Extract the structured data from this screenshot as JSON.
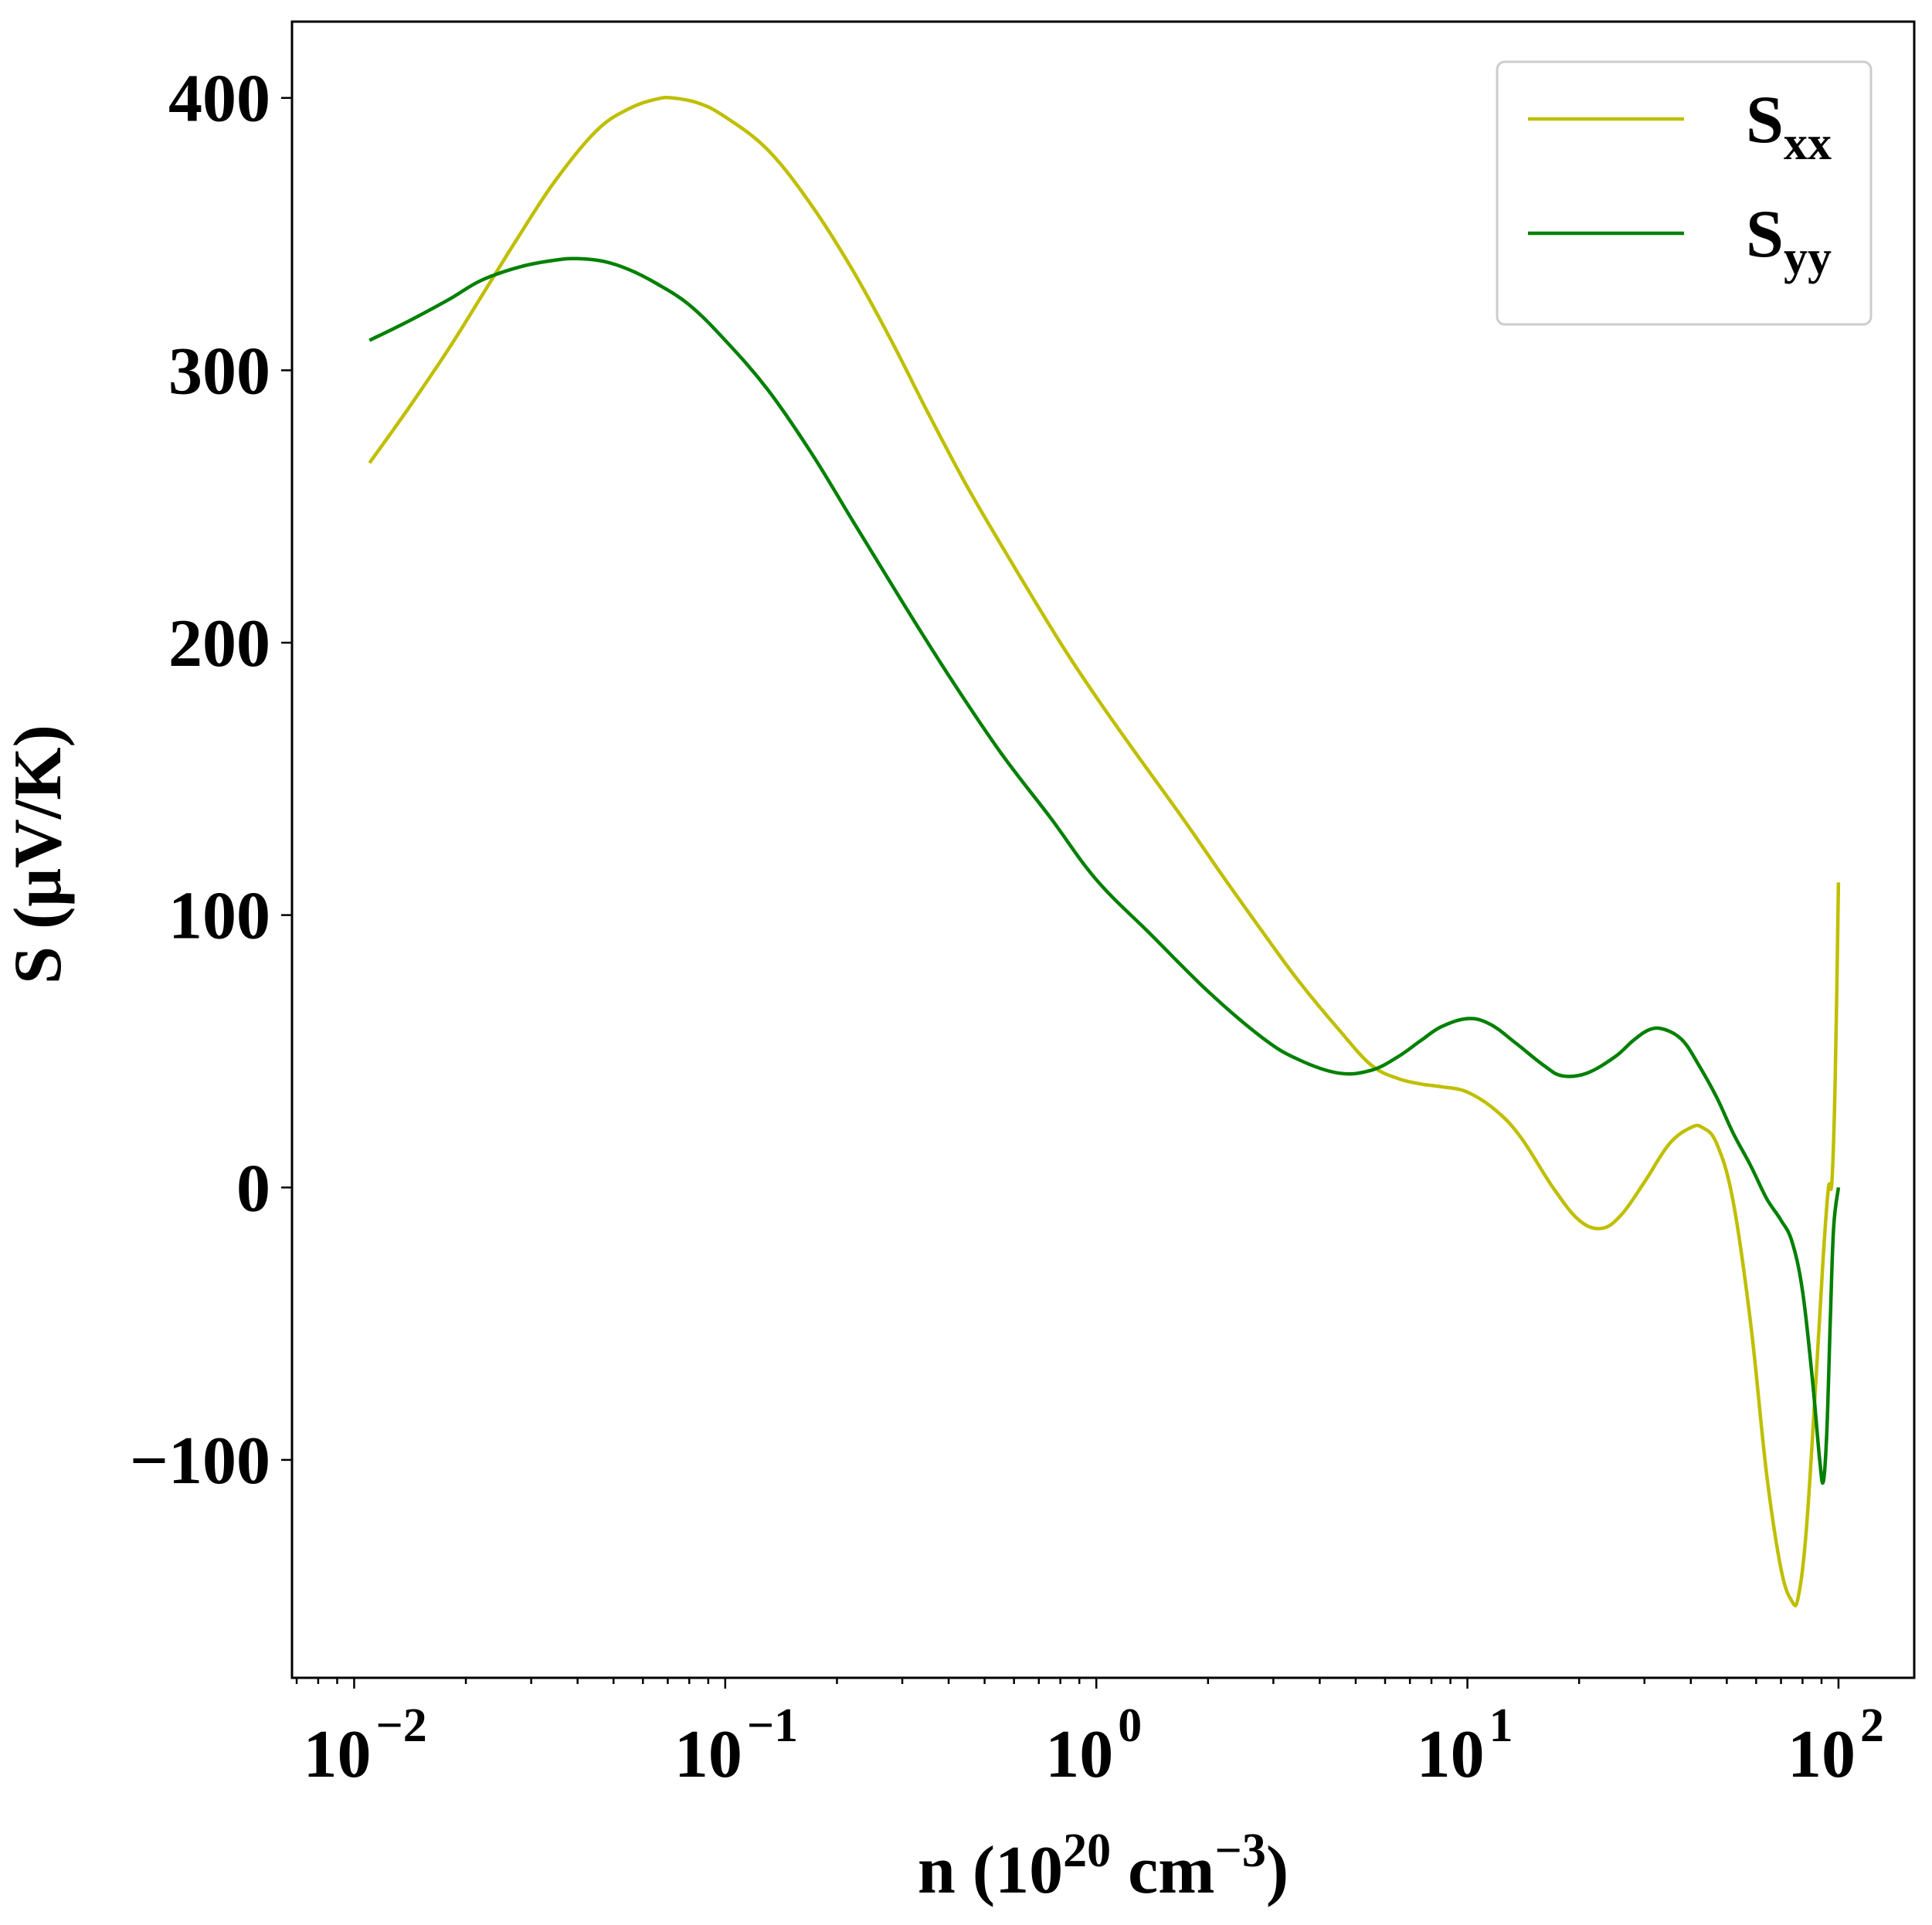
{
  "chart_data": {
    "type": "line",
    "title": "",
    "xlabel": "n (10^20 cm^-3)",
    "xlabel_parts": {
      "prefix": "n (10",
      "sup1": "20",
      "mid": " cm",
      "sup2": "−3",
      "suffix": ")"
    },
    "ylabel": "S (μV/K)",
    "xscale": "log",
    "xlim": [
      0.0068,
      160
    ],
    "ylim": [
      -180,
      428
    ],
    "grid": false,
    "legend_position": "top-right",
    "x_ticks": [
      {
        "value": 0.01,
        "base": "10",
        "exp": "−2"
      },
      {
        "value": 0.1,
        "base": "10",
        "exp": "−1"
      },
      {
        "value": 1,
        "base": "10",
        "exp": "0"
      },
      {
        "value": 10,
        "base": "10",
        "exp": "1"
      },
      {
        "value": 100,
        "base": "10",
        "exp": "2"
      }
    ],
    "y_ticks": [
      {
        "value": -100,
        "label": "−100"
      },
      {
        "value": 0,
        "label": "0"
      },
      {
        "value": 100,
        "label": "100"
      },
      {
        "value": 200,
        "label": "200"
      },
      {
        "value": 300,
        "label": "300"
      },
      {
        "value": 400,
        "label": "400"
      }
    ],
    "series": [
      {
        "name": "S_xx",
        "label_main": "S",
        "label_sub": "xx",
        "color": "#bfbf00",
        "x": [
          0.011,
          0.014,
          0.018,
          0.022,
          0.028,
          0.035,
          0.045,
          0.055,
          0.065,
          0.072,
          0.085,
          0.1,
          0.13,
          0.17,
          0.22,
          0.28,
          0.35,
          0.45,
          0.6,
          0.8,
          1.0,
          1.3,
          1.7,
          2.2,
          2.8,
          3.5,
          4.5,
          5.5,
          6.5,
          7.5,
          8.5,
          10,
          12,
          14,
          17,
          20,
          23,
          26,
          30,
          35,
          40,
          43,
          47,
          52,
          58,
          64,
          70,
          75,
          78,
          82,
          87,
          91,
          94,
          96,
          98,
          100
        ],
        "values": [
          266,
          286,
          308,
          327,
          350,
          370,
          388,
          396,
          399.5,
          400,
          398,
          393,
          381,
          361,
          337,
          311,
          285,
          257,
          228,
          200,
          180,
          158,
          136,
          114,
          94,
          76,
          58,
          45,
          40,
          38,
          37,
          35,
          28,
          18,
          0,
          -12,
          -15,
          -10,
          2,
          16,
          22,
          22,
          16,
          -5,
          -50,
          -105,
          -140,
          -152,
          -150,
          -125,
          -70,
          -25,
          0,
          2,
          40,
          112
        ]
      },
      {
        "name": "S_yy",
        "label_main": "S",
        "label_sub": "yy",
        "color": "#008000",
        "x": [
          0.011,
          0.014,
          0.018,
          0.022,
          0.028,
          0.035,
          0.04,
          0.047,
          0.055,
          0.065,
          0.08,
          0.1,
          0.13,
          0.17,
          0.22,
          0.3,
          0.4,
          0.55,
          0.75,
          1.0,
          1.4,
          2.0,
          2.8,
          3.5,
          4.5,
          5.5,
          6.5,
          7.5,
          8.5,
          10,
          11.5,
          13.5,
          16,
          18,
          21,
          25,
          28,
          31,
          34,
          38,
          42,
          47,
          52,
          58,
          64,
          70,
          75,
          80,
          85,
          89,
          91,
          93,
          95,
          97,
          100
        ],
        "values": [
          311,
          318,
          326,
          333,
          338,
          340.5,
          341,
          340,
          337,
          332,
          324,
          311,
          293,
          270,
          245,
          215,
          188,
          160,
          136,
          113,
          93,
          72,
          55,
          47,
          42,
          43,
          48,
          54,
          59,
          62,
          60,
          53,
          45,
          41,
          42,
          48,
          54,
          58,
          58,
          54,
          45,
          33,
          20,
          8,
          -4,
          -12,
          -20,
          -38,
          -70,
          -100,
          -108,
          -90,
          -50,
          -15,
          0
        ]
      }
    ]
  }
}
